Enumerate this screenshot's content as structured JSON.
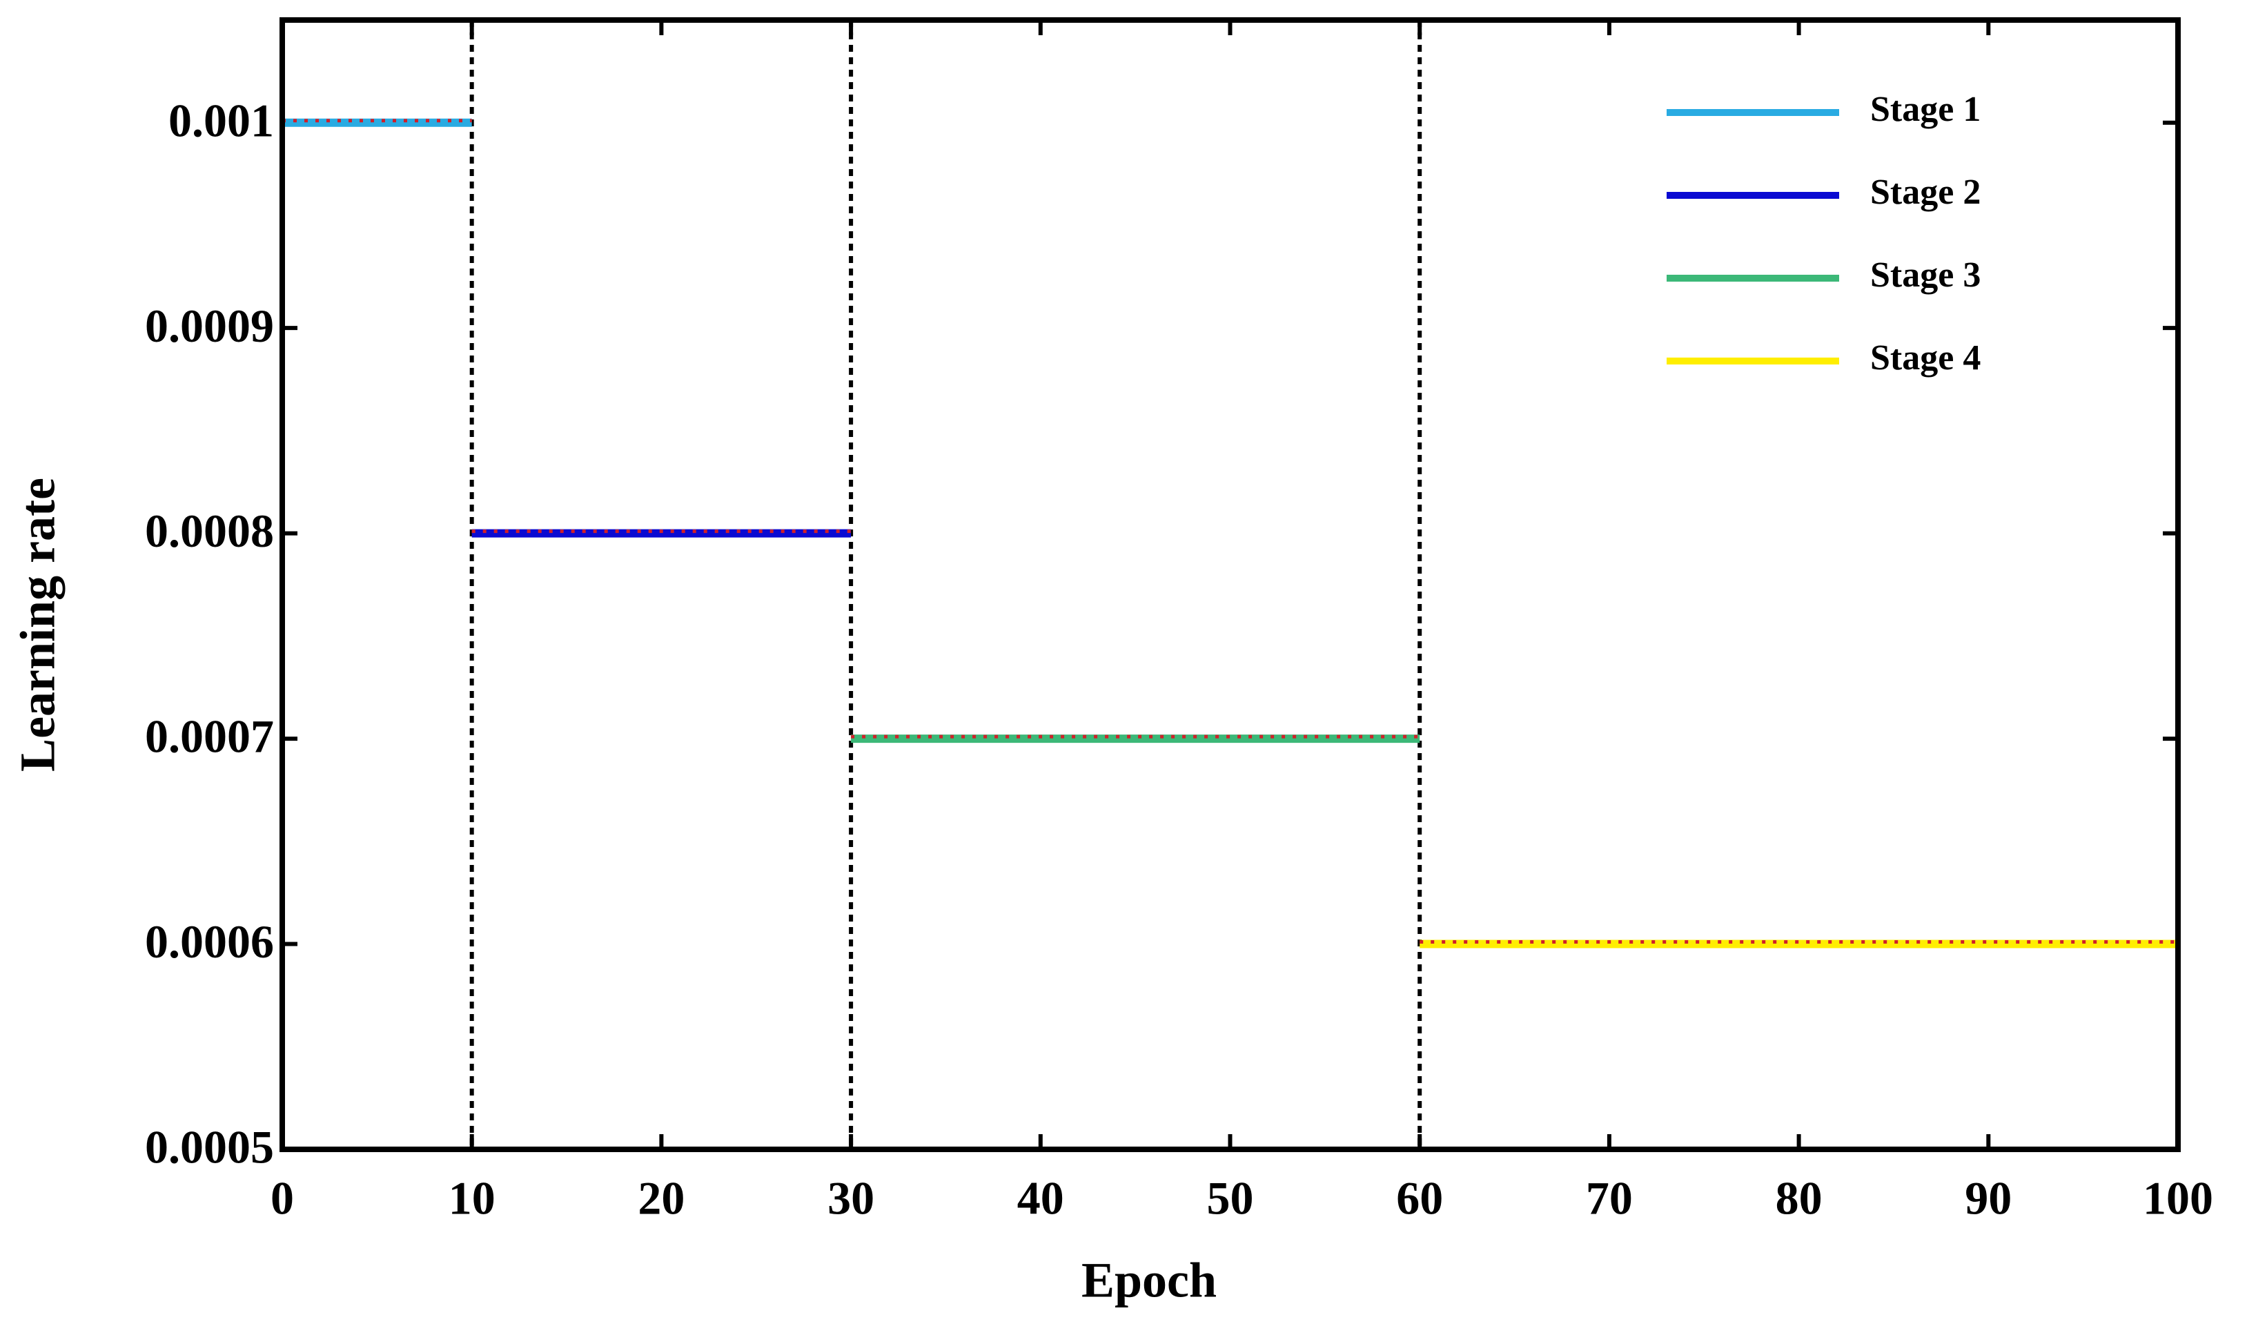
{
  "chart_data": {
    "type": "line",
    "x_label": "Epoch",
    "y_label": "Learning rate",
    "xlim": [
      0,
      100
    ],
    "xticks": [
      0,
      10,
      20,
      30,
      40,
      50,
      60,
      70,
      80,
      90,
      100
    ],
    "ylim": [
      0.0005,
      0.00105
    ],
    "yticks": [
      0.0005,
      0.0006,
      0.0007,
      0.0008,
      0.0009,
      0.001
    ],
    "vlines": [
      10,
      30,
      60
    ],
    "overlay_color": "#d0202a",
    "legend": "upper right",
    "series": [
      {
        "name": "Stage 1",
        "color": "#29abe2",
        "x": [
          0,
          10
        ],
        "values": [
          0.001,
          0.001
        ]
      },
      {
        "name": "Stage 2",
        "color": "#0a0ad2",
        "x": [
          10,
          30
        ],
        "values": [
          0.0008,
          0.0008
        ]
      },
      {
        "name": "Stage 3",
        "color": "#3cb878",
        "x": [
          30,
          60
        ],
        "values": [
          0.0007,
          0.0007
        ]
      },
      {
        "name": "Stage 4",
        "color": "#ffee00",
        "x": [
          60,
          100
        ],
        "values": [
          0.0006,
          0.0006
        ]
      }
    ]
  }
}
